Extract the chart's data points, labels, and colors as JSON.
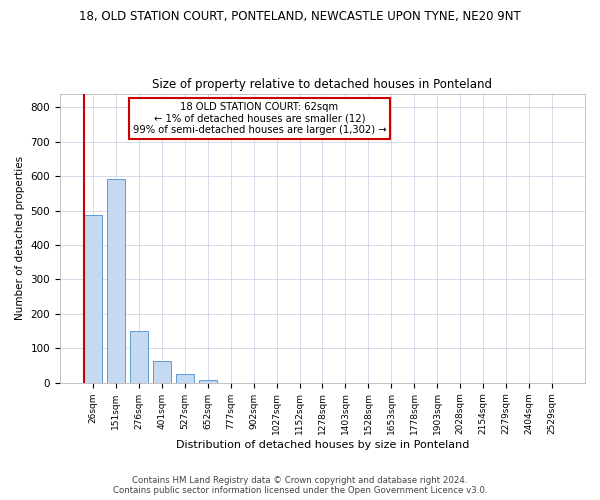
{
  "title1": "18, OLD STATION COURT, PONTELAND, NEWCASTLE UPON TYNE, NE20 9NT",
  "title2": "Size of property relative to detached houses in Ponteland",
  "xlabel": "Distribution of detached houses by size in Ponteland",
  "ylabel": "Number of detached properties",
  "bar_labels": [
    "26sqm",
    "151sqm",
    "276sqm",
    "401sqm",
    "527sqm",
    "652sqm",
    "777sqm",
    "902sqm",
    "1027sqm",
    "1152sqm",
    "1278sqm",
    "1403sqm",
    "1528sqm",
    "1653sqm",
    "1778sqm",
    "1903sqm",
    "2028sqm",
    "2154sqm",
    "2279sqm",
    "2404sqm",
    "2529sqm"
  ],
  "bar_values": [
    487,
    592,
    150,
    62,
    26,
    9,
    0,
    0,
    0,
    0,
    0,
    0,
    0,
    0,
    0,
    0,
    0,
    0,
    0,
    0,
    0
  ],
  "bar_color": "#c5d9f0",
  "bar_edge_color": "#5b9bd5",
  "annotation_text_line1": "18 OLD STATION COURT: 62sqm",
  "annotation_text_line2": "← 1% of detached houses are smaller (12)",
  "annotation_text_line3": "99% of semi-detached houses are larger (1,302) →",
  "annotation_box_color": "#ffffff",
  "annotation_border_color": "#cc0000",
  "ylim": [
    0,
    840
  ],
  "yticks": [
    0,
    100,
    200,
    300,
    400,
    500,
    600,
    700,
    800
  ],
  "footer_line1": "Contains HM Land Registry data © Crown copyright and database right 2024.",
  "footer_line2": "Contains public sector information licensed under the Open Government Licence v3.0.",
  "bg_color": "#ffffff",
  "grid_color": "#cdd6e8",
  "red_line_color": "#cc0000",
  "figsize": [
    6.0,
    5.0
  ],
  "dpi": 100
}
